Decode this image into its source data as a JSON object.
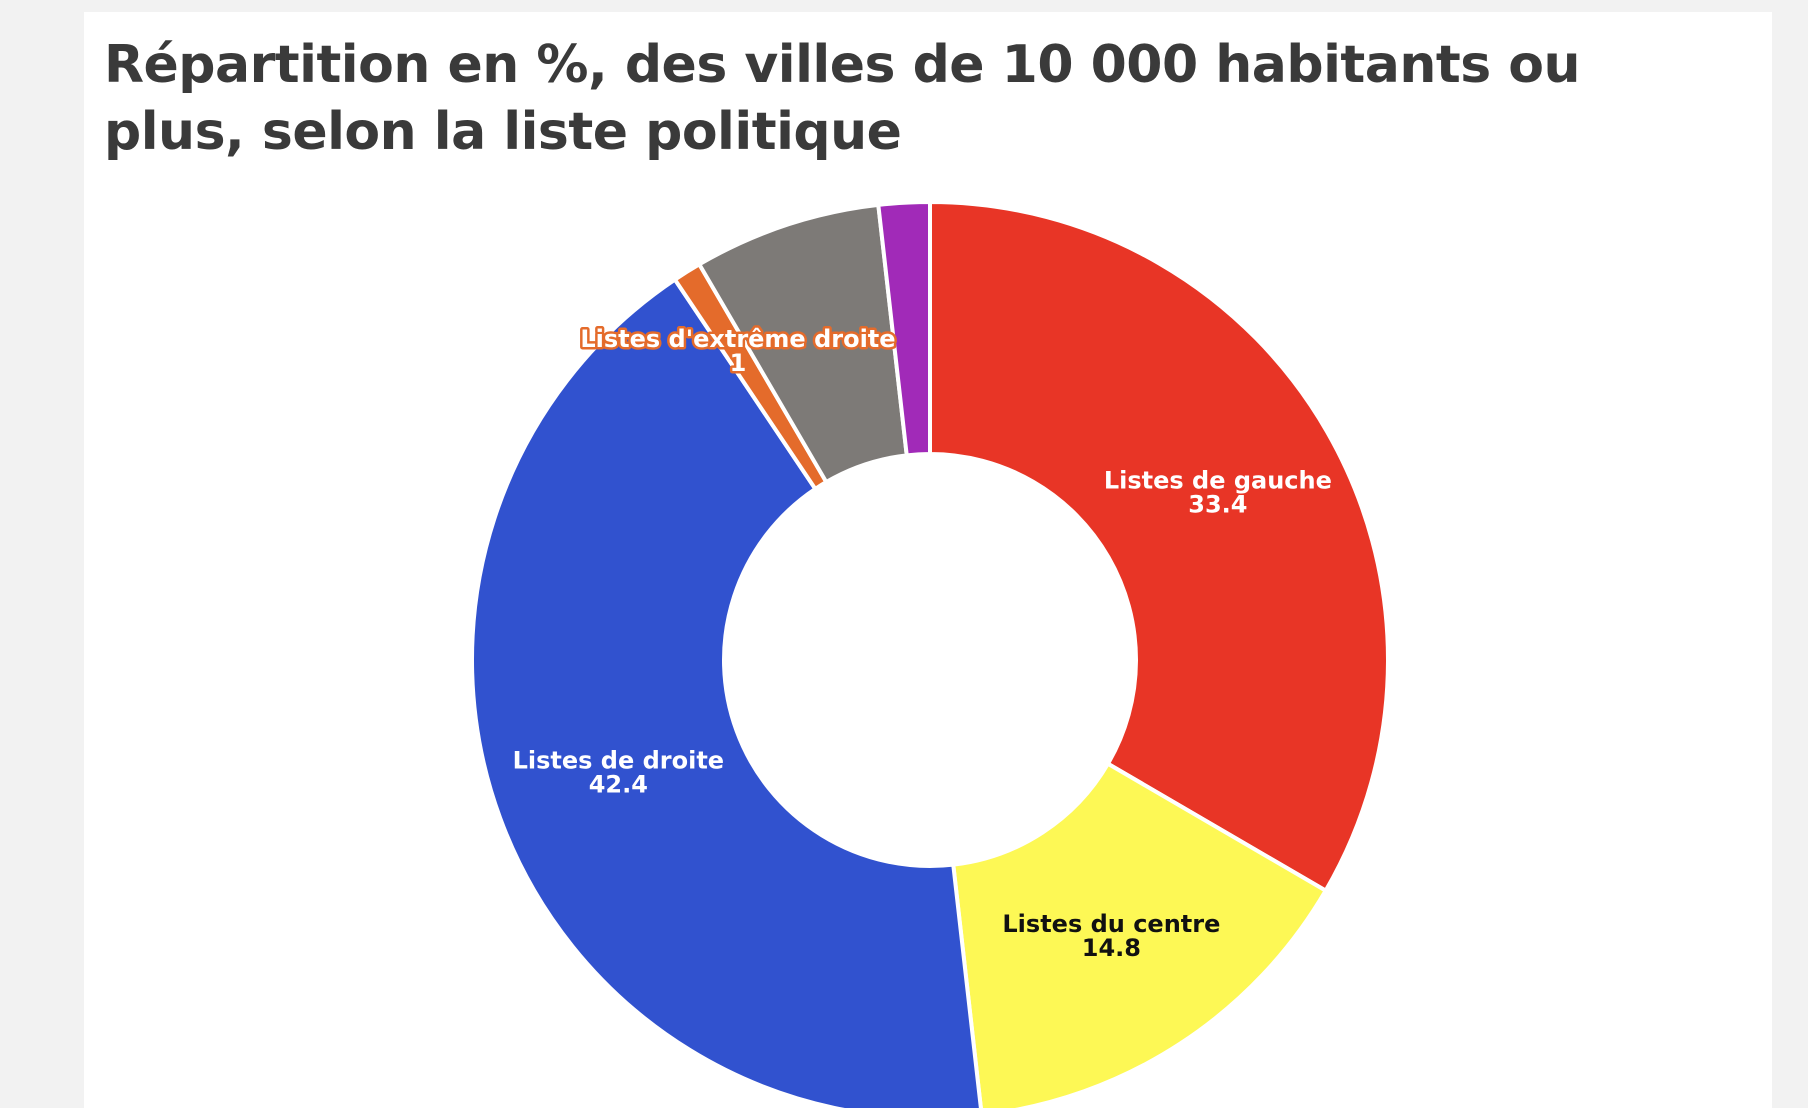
{
  "chart_data": {
    "type": "pie",
    "donut": true,
    "title": "Répartition en %, des villes de 10 000 habitants ou plus, selon la liste politique",
    "slices": [
      {
        "label": "Listes de gauche",
        "value": 33.4,
        "color": "#e83526",
        "label_color": "#ffffff",
        "show_label": true
      },
      {
        "label": "Listes du centre",
        "value": 14.8,
        "color": "#fdf855",
        "label_color": "#111111",
        "show_label": true
      },
      {
        "label": "Listes de droite",
        "value": 42.4,
        "color": "#3152cf",
        "label_color": "#ffffff",
        "show_label": true
      },
      {
        "label": "Listes d'extrême droite",
        "value": 1,
        "color": "#e46b2b",
        "label_color": "#ffffff",
        "show_label": true
      },
      {
        "label": "",
        "value": 6.6,
        "color": "#7d7a77",
        "label_color": "#ffffff",
        "show_label": false
      },
      {
        "label": "",
        "value": 1.8,
        "color": "#a12ab8",
        "label_color": "#ffffff",
        "show_label": false
      }
    ],
    "start": "top",
    "direction": "clockwise"
  }
}
